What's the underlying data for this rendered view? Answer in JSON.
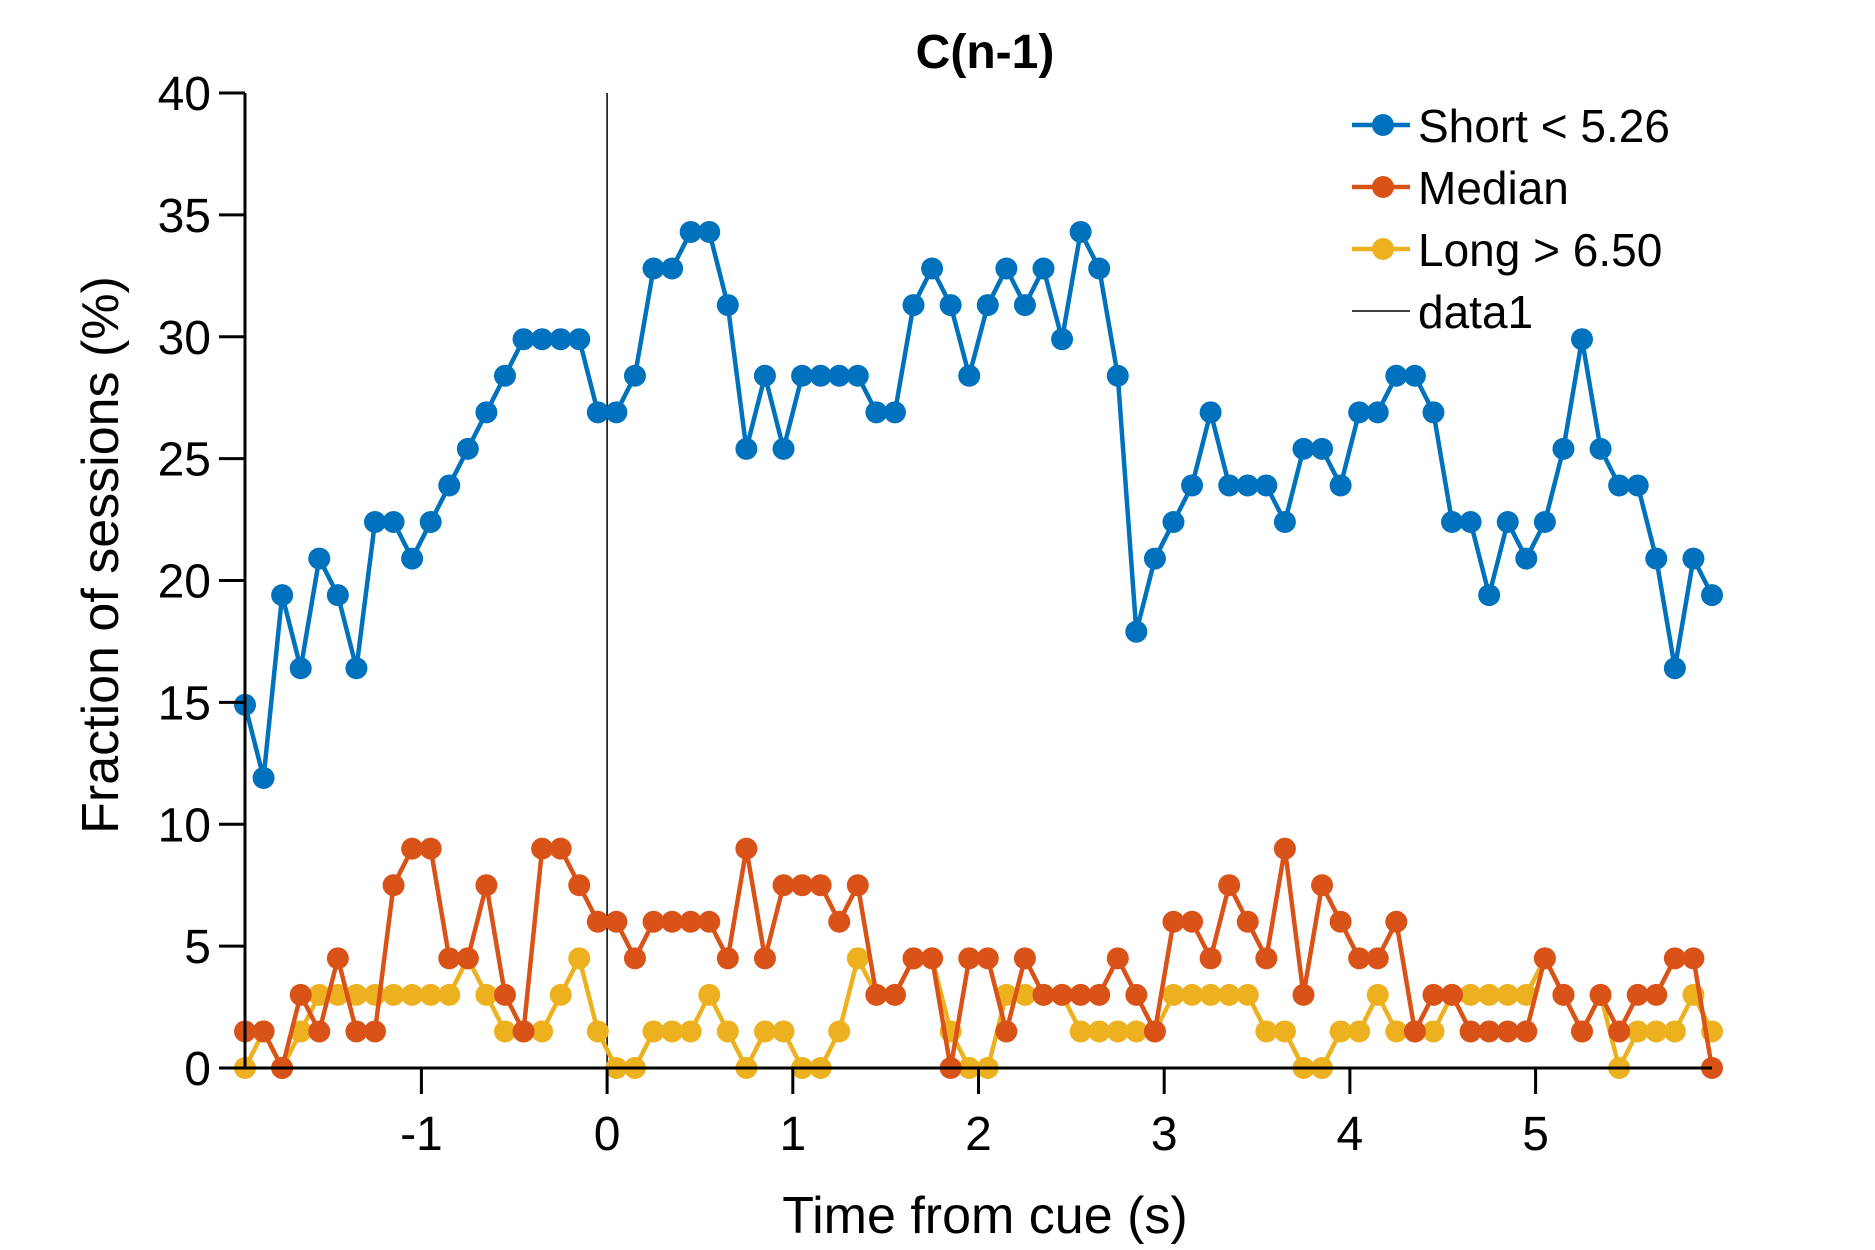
{
  "chart_data": {
    "type": "line",
    "title": "C(n-1)",
    "xlabel": "Time from cue (s)",
    "ylabel": "Fraction of sessions (%)",
    "xlim": [
      -1.95,
      5.95
    ],
    "ylim": [
      0,
      40
    ],
    "xticks": [
      -1,
      0,
      1,
      2,
      3,
      4,
      5
    ],
    "yticks": [
      0,
      5,
      10,
      15,
      20,
      25,
      30,
      35,
      40
    ],
    "grid": false,
    "legend_position": "top-right",
    "x": [
      -1.95,
      -1.85,
      -1.75,
      -1.65,
      -1.55,
      -1.45,
      -1.35,
      -1.25,
      -1.15,
      -1.05,
      -0.95,
      -0.85,
      -0.75,
      -0.65,
      -0.55,
      -0.45,
      -0.35,
      -0.25,
      -0.15,
      -0.05,
      0.05,
      0.15,
      0.25,
      0.35,
      0.45,
      0.55,
      0.65,
      0.75,
      0.85,
      0.95,
      1.05,
      1.15,
      1.25,
      1.35,
      1.45,
      1.55,
      1.65,
      1.75,
      1.85,
      1.95,
      2.05,
      2.15,
      2.25,
      2.35,
      2.45,
      2.55,
      2.65,
      2.75,
      2.85,
      2.95,
      3.05,
      3.15,
      3.25,
      3.35,
      3.45,
      3.55,
      3.65,
      3.75,
      3.85,
      3.95,
      4.05,
      4.15,
      4.25,
      4.35,
      4.45,
      4.55,
      4.65,
      4.75,
      4.85,
      4.95,
      5.05,
      5.15,
      5.25,
      5.35,
      5.45,
      5.55,
      5.65,
      5.75,
      5.85,
      5.95
    ],
    "series": [
      {
        "name": "Short < 5.26",
        "color": "#0072BD",
        "marker": "circle",
        "values": [
          14.9,
          11.9,
          19.4,
          16.4,
          20.9,
          19.4,
          16.4,
          22.4,
          22.4,
          20.9,
          22.4,
          23.9,
          25.4,
          26.9,
          28.4,
          29.9,
          29.9,
          29.9,
          29.9,
          26.9,
          26.9,
          28.4,
          32.8,
          32.8,
          34.3,
          34.3,
          31.3,
          25.4,
          28.4,
          25.4,
          28.4,
          28.4,
          28.4,
          28.4,
          26.9,
          26.9,
          31.3,
          32.8,
          31.3,
          28.4,
          31.3,
          32.8,
          31.3,
          32.8,
          29.9,
          34.3,
          32.8,
          28.4,
          17.9,
          20.9,
          22.4,
          23.9,
          26.9,
          23.9,
          23.9,
          23.9,
          22.4,
          25.4,
          25.4,
          23.9,
          26.9,
          26.9,
          28.4,
          28.4,
          26.9,
          22.4,
          22.4,
          19.4,
          22.4,
          20.9,
          22.4,
          25.4,
          29.9,
          25.4,
          23.9,
          23.9,
          20.9,
          16.4,
          20.9,
          19.4
        ]
      },
      {
        "name": "Median",
        "color": "#D95319",
        "marker": "circle",
        "values": [
          1.5,
          1.5,
          0,
          3.0,
          1.5,
          4.5,
          1.5,
          1.5,
          7.5,
          9.0,
          9.0,
          4.5,
          4.5,
          7.5,
          3.0,
          1.5,
          9.0,
          9.0,
          7.5,
          6.0,
          6.0,
          4.5,
          6.0,
          6.0,
          6.0,
          6.0,
          4.5,
          9.0,
          4.5,
          7.5,
          7.5,
          7.5,
          6.0,
          7.5,
          3.0,
          3.0,
          4.5,
          4.5,
          0,
          4.5,
          4.5,
          1.5,
          4.5,
          3.0,
          3.0,
          3.0,
          3.0,
          4.5,
          3.0,
          1.5,
          6.0,
          6.0,
          4.5,
          7.5,
          6.0,
          4.5,
          9.0,
          3.0,
          7.5,
          6.0,
          4.5,
          4.5,
          6.0,
          1.5,
          3.0,
          3.0,
          1.5,
          1.5,
          1.5,
          1.5,
          4.5,
          3.0,
          1.5,
          3.0,
          1.5,
          3.0,
          3.0,
          4.5,
          4.5,
          0
        ]
      },
      {
        "name": "Long > 6.50",
        "color": "#EDB120",
        "marker": "circle",
        "values": [
          0,
          1.5,
          0,
          1.5,
          3.0,
          3.0,
          3.0,
          3.0,
          3.0,
          3.0,
          3.0,
          3.0,
          4.5,
          3.0,
          1.5,
          1.5,
          1.5,
          3.0,
          4.5,
          1.5,
          0,
          0,
          1.5,
          1.5,
          1.5,
          3.0,
          1.5,
          0,
          1.5,
          1.5,
          0,
          0,
          1.5,
          4.5,
          3.0,
          3.0,
          4.5,
          4.5,
          1.5,
          0,
          0,
          3.0,
          3.0,
          3.0,
          3.0,
          1.5,
          1.5,
          1.5,
          1.5,
          1.5,
          3.0,
          3.0,
          3.0,
          3.0,
          3.0,
          1.5,
          1.5,
          0,
          0,
          1.5,
          1.5,
          3.0,
          1.5,
          1.5,
          1.5,
          3.0,
          3.0,
          3.0,
          3.0,
          3.0,
          4.5,
          3.0,
          1.5,
          3.0,
          0,
          1.5,
          1.5,
          1.5,
          3.0,
          1.5
        ]
      }
    ],
    "reference_lines": [
      {
        "name": "data1",
        "orientation": "vertical",
        "x": 0,
        "color": "#000000"
      }
    ]
  }
}
